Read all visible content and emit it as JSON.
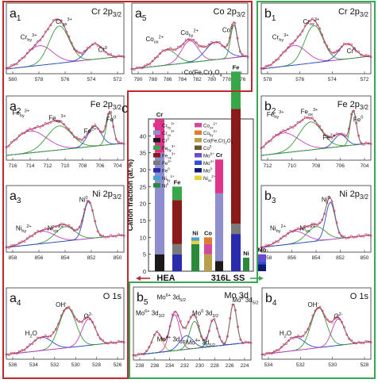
{
  "panels": [
    {
      "id": "a1",
      "letter": "a",
      "sub": "1",
      "title": "Cr 2p",
      "title_sub": "3/2",
      "ticks": [
        "580",
        "578",
        "576",
        "574",
        "572"
      ],
      "labels": [
        {
          "main": "Cr",
          "sub": "hy",
          "sup": "3+"
        },
        {
          "main": "Cr",
          "sub": "ox",
          "sup": "3+"
        },
        {
          "main": "Cr",
          "sub": "",
          "sup": "0"
        }
      ]
    },
    {
      "id": "a5",
      "letter": "a",
      "sub": "5",
      "title": "Co 2p",
      "title_sub": "3/2",
      "ticks": [
        "790",
        "788",
        "786",
        "784",
        "782",
        "780",
        "778",
        "776"
      ],
      "labels": [
        {
          "main": "Co",
          "sub": "ox",
          "sup": "2+"
        },
        {
          "main": "Co",
          "sub": "hy",
          "sup": "2+"
        },
        {
          "main": "Co",
          "sub": "",
          "sup": "0"
        },
        {
          "main": "Co(Fe,Cr)",
          "sub": "2",
          "sup": "",
          "tail": "O",
          "tail_sub": "4"
        }
      ]
    },
    {
      "id": "b1",
      "letter": "b",
      "sub": "1",
      "title": "Cr 2p",
      "title_sub": "3/2",
      "ticks": [
        "578",
        "576",
        "574",
        "572"
      ],
      "labels": [
        {
          "main": "Cr",
          "sub": "hy",
          "sup": "3+"
        },
        {
          "main": "Cr",
          "sub": "ox",
          "sup": "3+"
        },
        {
          "main": "Cr",
          "sub": "",
          "sup": "0"
        }
      ]
    },
    {
      "id": "a2",
      "letter": "a",
      "sub": "2",
      "title": "Fe 2p",
      "title_sub": "3/2",
      "ticks": [
        "716",
        "714",
        "712",
        "710",
        "708",
        "706",
        "704"
      ],
      "labels": [
        {
          "main": "Fe",
          "sub": "hy",
          "sup": "3+"
        },
        {
          "main": "Fe",
          "sub": "ox",
          "sup": "3+"
        },
        {
          "main": "Fe",
          "sub": "",
          "sup": "2+"
        },
        {
          "main": "Fe",
          "sub": "",
          "sup": "0"
        }
      ]
    },
    {
      "id": "b2",
      "letter": "b",
      "sub": "2",
      "title": "Fe 2p",
      "title_sub": "3/2",
      "ticks": [
        "712",
        "710",
        "708",
        "706",
        "704"
      ],
      "labels": [
        {
          "main": "Fe",
          "sub": "hy",
          "sup": "3+"
        },
        {
          "main": "Fe",
          "sub": "ox",
          "sup": "3+"
        },
        {
          "main": "Fe",
          "sub": "",
          "sup": "2+"
        },
        {
          "main": "Fe",
          "sub": "",
          "sup": "0"
        }
      ]
    },
    {
      "id": "a3",
      "letter": "a",
      "sub": "3",
      "title": "Ni 2p",
      "title_sub": "3/2",
      "ticks": [
        "858",
        "856",
        "854",
        "852",
        "850"
      ],
      "labels": [
        {
          "main": "Ni",
          "sub": "hy",
          "sup": "2+"
        },
        {
          "main": "Ni",
          "sub": "ox",
          "sup": "2+"
        },
        {
          "main": "Ni",
          "sub": "",
          "sup": "0"
        }
      ]
    },
    {
      "id": "b3",
      "letter": "b",
      "sub": "3",
      "title": "Ni 2p",
      "title_sub": "3/2",
      "ticks": [
        "858",
        "856",
        "854",
        "852",
        "850"
      ],
      "labels": [
        {
          "main": "Ni",
          "sub": "hy",
          "sup": "2+"
        },
        {
          "main": "Ni",
          "sub": "ox",
          "sup": "2+"
        },
        {
          "main": "Ni",
          "sub": "",
          "sup": "0"
        }
      ]
    },
    {
      "id": "a4",
      "letter": "a",
      "sub": "4",
      "title": "O 1s",
      "title_sub": "",
      "ticks": [
        "536",
        "534",
        "532",
        "530",
        "528",
        "526"
      ],
      "labels": [
        {
          "main": "H",
          "sub": "2",
          "sup": "",
          "tail": "O",
          "tail_sub": ""
        },
        {
          "main": "OH",
          "sub": "",
          "sup": "-"
        },
        {
          "main": "O",
          "sub": "",
          "sup": "2-"
        }
      ]
    },
    {
      "id": "b5",
      "letter": "b",
      "sub": "5",
      "title": "Mo 3d",
      "title_sub": "",
      "ticks": [
        "238",
        "236",
        "234",
        "232",
        "230",
        "228",
        "226",
        "224"
      ],
      "labels": [
        {
          "main": "Mo",
          "sub": "",
          "sup": "6+",
          "tail": " 3d",
          "tail_sub": "3/2"
        },
        {
          "main": "Mo",
          "sub": "",
          "sup": "6+",
          "tail": " 3d",
          "tail_sub": "5/2"
        },
        {
          "main": "Mo",
          "sub": "",
          "sup": "0",
          "tail": " 3d",
          "tail_sub": "3/2"
        },
        {
          "main": "Mo",
          "sub": "",
          "sup": "0",
          "tail": " 3d",
          "tail_sub": "5/2"
        },
        {
          "main": "Mo",
          "sub": "",
          "sup": "4+",
          "tail": " 3d",
          "tail_sub": "3/2"
        },
        {
          "main": "Mo",
          "sub": "",
          "sup": "4+",
          "tail": " 3d",
          "tail_sub": "5/2"
        }
      ]
    },
    {
      "id": "b4",
      "letter": "b",
      "sub": "4",
      "title": "O 1s",
      "title_sub": "",
      "ticks": [
        "534",
        "532",
        "530",
        "528"
      ],
      "labels": [
        {
          "main": "H",
          "sub": "2",
          "sup": "",
          "tail": "O",
          "tail_sub": ""
        },
        {
          "main": "OH",
          "sub": "",
          "sup": "-"
        },
        {
          "main": "O",
          "sub": "",
          "sup": "2-"
        }
      ]
    }
  ],
  "colors": {
    "frame_red": "#c0282d",
    "frame_green": "#3aa657",
    "data": "#d6336c",
    "fit": "#8a6a6a",
    "bg": "#5a6fc0",
    "comp_green": "#3c9a3c",
    "comp_blue": "#3050c0",
    "comp_magenta": "#c040c0",
    "comp_orange": "#e0a030"
  },
  "chart_data": {
    "type": "bar",
    "panel_letter": "c",
    "ylabel": "Cation fraction (at.%)",
    "ylim": [
      0,
      45
    ],
    "yticks": [
      "0",
      "5",
      "10",
      "15",
      "20",
      "25",
      "30",
      "35",
      "40"
    ],
    "groups": [
      "HEA",
      "316L SS"
    ],
    "categories": [
      {
        "group": "HEA",
        "label": "Cr",
        "segments": [
          {
            "species": "Cr0",
            "value": 5,
            "color": "#1a1a1a"
          },
          {
            "species": "Crox3+",
            "value": 30,
            "color": "#8f8fd0"
          },
          {
            "species": "Crhy3+",
            "value": 10,
            "color": "#e0338a"
          }
        ]
      },
      {
        "group": "HEA",
        "label": "Fe",
        "segments": [
          {
            "species": "Fe0",
            "value": 5,
            "color": "#2b2bb0"
          },
          {
            "species": "Fe2+",
            "value": 3,
            "color": "#7a7a7a"
          },
          {
            "species": "Feox3+",
            "value": 13,
            "color": "#8b1a1a"
          },
          {
            "species": "Fehy3+",
            "value": 4,
            "color": "#3aa64a"
          }
        ]
      },
      {
        "group": "HEA",
        "label": "Ni",
        "segments": [
          {
            "species": "Ni0",
            "value": 8,
            "color": "#2a8a3a"
          },
          {
            "species": "Niox2+",
            "value": 1,
            "color": "#e6d23a"
          },
          {
            "species": "Nihy2+",
            "value": 1,
            "color": "#4aa0d0"
          }
        ]
      },
      {
        "group": "HEA",
        "label": "Co",
        "segments": [
          {
            "species": "Co(Fe,Cr)2O4",
            "value": 5,
            "color": "#b8a04a"
          },
          {
            "species": "Coox2+",
            "value": 3,
            "color": "#d04aa0"
          },
          {
            "species": "Cohy2+",
            "value": 2,
            "color": "#e07a30"
          }
        ]
      },
      {
        "group": "316L SS",
        "label": "Cr",
        "segments": [
          {
            "species": "Cr0",
            "value": 3,
            "color": "#1a1a1a"
          },
          {
            "species": "Crox3+",
            "value": 20,
            "color": "#8f8fd0"
          },
          {
            "species": "Crhy3+",
            "value": 10,
            "color": "#e0338a"
          }
        ]
      },
      {
        "group": "316L SS",
        "label": "Fe",
        "segments": [
          {
            "species": "Fe0",
            "value": 11,
            "color": "#2b2bb0"
          },
          {
            "species": "Fe2+",
            "value": 3,
            "color": "#7a7a7a"
          },
          {
            "species": "Feox3+",
            "value": 34,
            "color": "#8b1a1a"
          },
          {
            "species": "Fehy3+",
            "value": 11,
            "color": "#3aa64a"
          }
        ]
      },
      {
        "group": "316L SS",
        "label": "Ni",
        "segments": [
          {
            "species": "Ni0",
            "value": 4,
            "color": "#2a8a3a"
          }
        ]
      },
      {
        "group": "316L SS",
        "label": "Mo",
        "segments": [
          {
            "species": "Mo0",
            "value": 2,
            "color": "#0f1a70"
          },
          {
            "species": "Mo4+",
            "value": 1,
            "color": "#2f4fd0"
          },
          {
            "species": "Mo6+",
            "value": 2,
            "color": "#6a4ad0"
          }
        ]
      }
    ],
    "legend": [
      {
        "main": "Cr",
        "sub": "hy",
        "sup": "3+",
        "color": "#e0338a"
      },
      {
        "main": "Co",
        "sub": "ox",
        "sup": "2+",
        "color": "#d04aa0"
      },
      {
        "main": "Cr",
        "sub": "ox",
        "sup": "3+",
        "color": "#8f8fd0"
      },
      {
        "main": "Co",
        "sub": "hy",
        "sup": "2+",
        "color": "#e07a30"
      },
      {
        "main": "Cr",
        "sub": "",
        "sup": "0",
        "color": "#1a1a1a"
      },
      {
        "main": "Co(Fe,Cr)",
        "sub": "2",
        "sup": "",
        "tail": "O",
        "tail_sub": "4",
        "color": "#b8a04a"
      },
      {
        "main": "Fe",
        "sub": "hy",
        "sup": "3+",
        "color": "#3aa64a"
      },
      {
        "main": "Co",
        "sub": "",
        "sup": "0",
        "color": "#6a5a2a"
      },
      {
        "main": "Fe",
        "sub": "ox",
        "sup": "3+",
        "color": "#8b1a1a"
      },
      {
        "main": "Mo",
        "sub": "",
        "sup": "6+",
        "color": "#6a4ad0"
      },
      {
        "main": "Fe",
        "sub": "",
        "sup": "2+",
        "color": "#7a7a7a"
      },
      {
        "main": "Mo",
        "sub": "",
        "sup": "4+",
        "color": "#2f4fd0"
      },
      {
        "main": "Fe",
        "sub": "",
        "sup": "0",
        "color": "#2b2bb0"
      },
      {
        "main": "Mo",
        "sub": "",
        "sup": "0",
        "color": "#0f1a70"
      },
      {
        "main": "Ni",
        "sub": "hy",
        "sup": "2+",
        "color": "#4aa0d0"
      },
      {
        "main": "Ni",
        "sub": "ox",
        "sup": "2+",
        "color": "#e6d23a"
      },
      {
        "main": "Ni",
        "sub": "",
        "sup": "0",
        "color": "#2a8a3a"
      }
    ]
  }
}
